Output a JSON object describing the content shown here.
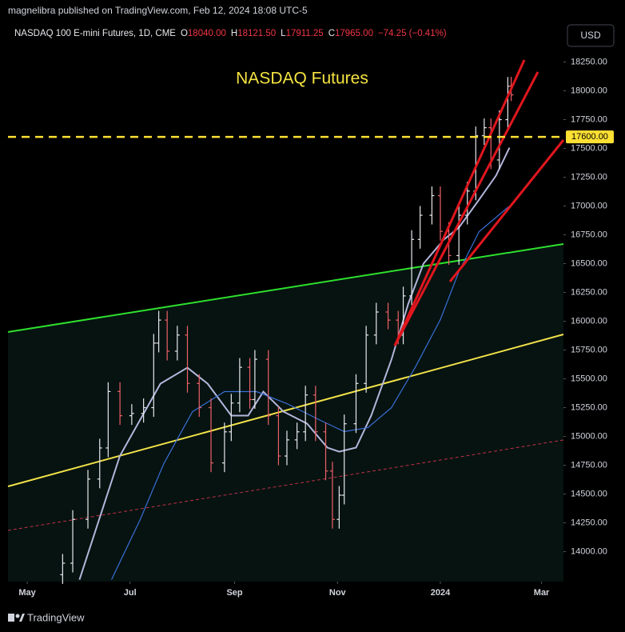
{
  "header": {
    "published": "magnelibra published on TradingView.com, Feb 12, 2024 18:08 UTC-5",
    "symbol": "NASDAQ 100 E-mini Futures, 1D, CME",
    "ohlc": [
      {
        "key": "O",
        "value": "18040.00"
      },
      {
        "key": "H",
        "value": "18121.50"
      },
      {
        "key": "L",
        "value": "17911.25"
      },
      {
        "key": "C",
        "value": "17965.00"
      }
    ],
    "change": "−74.25 (−0.41%)"
  },
  "currency": "USD",
  "footer": "TradingView",
  "chart_data": {
    "type": "ohlc",
    "annotation": "NASDAQ Futures",
    "x": [
      21,
      27,
      36,
      43,
      48,
      55,
      62,
      69,
      75,
      78,
      83,
      89,
      95,
      102,
      109,
      117,
      121,
      126,
      132,
      135,
      143,
      149,
      154,
      160,
      165,
      171,
      177,
      181,
      185,
      188,
      195,
      201,
      207,
      214,
      220,
      223,
      228,
      233,
      240,
      245,
      250,
      256,
      261,
      266,
      271,
      275,
      280,
      285,
      287
    ],
    "open": [
      13800,
      13900,
      14280,
      14630,
      14900,
      15390,
      15180,
      15200,
      15250,
      15810,
      16010,
      15740,
      15880,
      15460,
      15250,
      14770,
      15040,
      15290,
      15600,
      15320,
      15670,
      15180,
      14830,
      14970,
      15040,
      15360,
      15040,
      14700,
      14280,
      14490,
      15110,
      15460,
      15880,
      16080,
      16010,
      15880,
      16220,
      16710,
      16920,
      17090,
      16780,
      16570,
      16920,
      17130,
      17610,
      17680,
      17400,
      17750,
      18040
    ],
    "high": [
      13980,
      14360,
      14710,
      14980,
      15470,
      15470,
      15280,
      15330,
      15890,
      16090,
      16090,
      15960,
      15960,
      15540,
      15330,
      15120,
      15370,
      15680,
      15680,
      15750,
      15750,
      15260,
      15050,
      15120,
      15440,
      15440,
      15120,
      14780,
      14570,
      15190,
      15540,
      15960,
      16160,
      16160,
      16090,
      16300,
      16790,
      17000,
      17170,
      17170,
      16860,
      17000,
      17210,
      17690,
      17760,
      17760,
      17830,
      18120,
      18121.5
    ],
    "low": [
      13720,
      13820,
      14200,
      14550,
      14820,
      15100,
      15100,
      15120,
      15170,
      15730,
      15660,
      15660,
      15380,
      15170,
      14690,
      14690,
      14960,
      15210,
      15240,
      15240,
      15100,
      14750,
      14750,
      14890,
      14960,
      14960,
      14620,
      14200,
      14200,
      14410,
      15030,
      15380,
      15800,
      15930,
      15800,
      15800,
      16140,
      16630,
      16840,
      16700,
      16490,
      16490,
      16840,
      17050,
      17530,
      17320,
      17320,
      17670,
      17911.25
    ],
    "close": [
      13900,
      14280,
      14630,
      14900,
      15390,
      15180,
      15200,
      15250,
      15810,
      16010,
      15740,
      15880,
      15460,
      15250,
      14770,
      15040,
      15290,
      15600,
      15320,
      15670,
      15180,
      14830,
      14970,
      15040,
      15360,
      15040,
      14700,
      14280,
      14490,
      15110,
      15460,
      15880,
      16080,
      16010,
      15880,
      16220,
      16710,
      16920,
      17090,
      16780,
      16570,
      16920,
      17130,
      17610,
      17680,
      17400,
      17750,
      18040,
      17965
    ],
    "up_color": "#e8e8ee",
    "down_color": "#f0606a",
    "lines": [
      {
        "color": "#b4b6dc",
        "x": [
          31,
          55,
          79,
          95,
          107,
          121,
          131,
          140,
          152,
          166,
          178,
          185,
          195,
          204,
          216,
          226,
          235,
          247,
          256,
          268,
          278,
          286
        ],
        "values": [
          13757,
          14833,
          15458,
          15597,
          15458,
          15181,
          15181,
          15389,
          15215,
          15111,
          14903,
          14868,
          14903,
          15181,
          15667,
          16153,
          16500,
          16708,
          16813,
          17056,
          17264,
          17507
        ]
      },
      {
        "color": "#3a6fd8",
        "x": [
          50,
          67,
          81,
          98,
          117,
          136,
          154,
          173,
          188,
          202,
          216,
          230,
          245,
          256,
          268,
          286
        ],
        "values": [
          13757,
          14278,
          14764,
          15215,
          15389,
          15389,
          15285,
          15146,
          15042,
          15076,
          15250,
          15597,
          16014,
          16431,
          16778,
          17000
        ]
      }
    ],
    "hline": {
      "value": 17600,
      "label": "17600.00",
      "color": "#ffe033"
    },
    "xlim": [
      -11.4,
      318
    ],
    "ylim": [
      13740,
      18580
    ],
    "xticks": [
      {
        "value": 0,
        "label": "May"
      },
      {
        "value": 61,
        "label": "Jul"
      },
      {
        "value": 123,
        "label": "Sep"
      },
      {
        "value": 184,
        "label": "Nov"
      },
      {
        "value": 245,
        "label": "2024"
      },
      {
        "value": 305,
        "label": "Mar"
      }
    ],
    "yticks": [
      {
        "value": 14000,
        "label": "14000.00"
      },
      {
        "value": 14250,
        "label": "14250.00"
      },
      {
        "value": 14500,
        "label": "14500.00"
      },
      {
        "value": 14750,
        "label": "14750.00"
      },
      {
        "value": 15000,
        "label": "15000.00"
      },
      {
        "value": 15250,
        "label": "15250.00"
      },
      {
        "value": 15500,
        "label": "15500.00"
      },
      {
        "value": 15750,
        "label": "15750.00"
      },
      {
        "value": 16000,
        "label": "16000.00"
      },
      {
        "value": 16250,
        "label": "16250.00"
      },
      {
        "value": 16500,
        "label": "16500.00"
      },
      {
        "value": 16750,
        "label": "16750.00"
      },
      {
        "value": 17000,
        "label": "17000.00"
      },
      {
        "value": 17250,
        "label": "17250.00"
      },
      {
        "value": 17500,
        "label": "17500.00"
      },
      {
        "value": 17750,
        "label": "17750.00"
      },
      {
        "value": 18000,
        "label": "18000.00"
      },
      {
        "value": 18250,
        "label": "18250.00"
      }
    ],
    "grid": false
  }
}
